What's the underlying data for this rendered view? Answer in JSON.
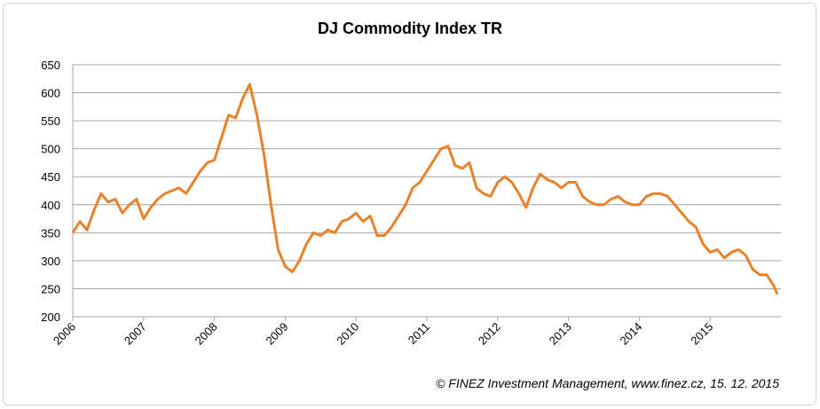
{
  "chart_data": {
    "type": "line",
    "title": "DJ Commodity Index TR",
    "annotation": "© FINEZ Investment Management, www.finez.cz, 15. 12. 2015",
    "x": [
      2006.0,
      2006.1,
      2006.2,
      2006.3,
      2006.4,
      2006.5,
      2006.6,
      2006.7,
      2006.8,
      2006.9,
      2007.0,
      2007.1,
      2007.2,
      2007.3,
      2007.4,
      2007.5,
      2007.6,
      2007.7,
      2007.8,
      2007.9,
      2008.0,
      2008.1,
      2008.2,
      2008.3,
      2008.4,
      2008.5,
      2008.6,
      2008.7,
      2008.8,
      2008.9,
      2009.0,
      2009.1,
      2009.2,
      2009.3,
      2009.4,
      2009.5,
      2009.6,
      2009.7,
      2009.8,
      2009.9,
      2010.0,
      2010.1,
      2010.2,
      2010.3,
      2010.4,
      2010.5,
      2010.6,
      2010.7,
      2010.8,
      2010.9,
      2011.0,
      2011.1,
      2011.2,
      2011.3,
      2011.4,
      2011.5,
      2011.6,
      2011.7,
      2011.8,
      2011.9,
      2012.0,
      2012.1,
      2012.2,
      2012.3,
      2012.4,
      2012.5,
      2012.6,
      2012.7,
      2012.8,
      2012.9,
      2013.0,
      2013.1,
      2013.2,
      2013.3,
      2013.4,
      2013.5,
      2013.6,
      2013.7,
      2013.8,
      2013.9,
      2014.0,
      2014.1,
      2014.2,
      2014.3,
      2014.4,
      2014.5,
      2014.6,
      2014.7,
      2014.8,
      2014.9,
      2015.0,
      2015.1,
      2015.2,
      2015.3,
      2015.4,
      2015.5,
      2015.6,
      2015.7,
      2015.8,
      2015.9,
      2015.95
    ],
    "series": [
      {
        "name": "DJ Commodity Index TR",
        "color": "#e8822a",
        "values": [
          350,
          370,
          355,
          390,
          420,
          405,
          410,
          385,
          400,
          410,
          375,
          395,
          410,
          420,
          425,
          430,
          420,
          440,
          460,
          475,
          480,
          520,
          560,
          555,
          590,
          615,
          560,
          490,
          400,
          320,
          290,
          280,
          300,
          330,
          350,
          345,
          355,
          350,
          370,
          375,
          385,
          370,
          380,
          345,
          345,
          360,
          380,
          400,
          430,
          440,
          460,
          480,
          500,
          505,
          470,
          465,
          475,
          430,
          420,
          415,
          440,
          450,
          440,
          420,
          395,
          430,
          455,
          445,
          440,
          430,
          440,
          440,
          415,
          405,
          400,
          400,
          410,
          415,
          405,
          400,
          400,
          415,
          420,
          420,
          415,
          400,
          385,
          370,
          360,
          330,
          315,
          320,
          305,
          315,
          320,
          310,
          285,
          275,
          275,
          255,
          240
        ]
      }
    ],
    "xlim": [
      2006,
      2016
    ],
    "xticks": [
      2006,
      2007,
      2008,
      2009,
      2010,
      2011,
      2012,
      2013,
      2014,
      2015
    ],
    "ylim": [
      200,
      650
    ],
    "yticks": [
      200,
      250,
      300,
      350,
      400,
      450,
      500,
      550,
      600,
      650
    ],
    "grid": true,
    "legend": false
  }
}
